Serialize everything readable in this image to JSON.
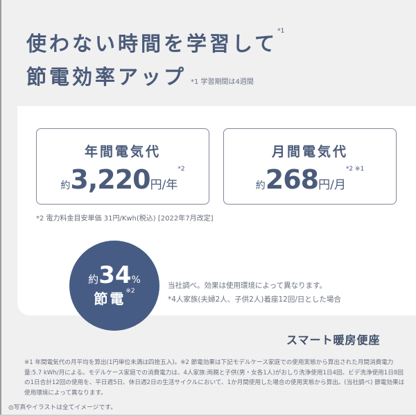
{
  "heading": {
    "line1": "使わない時間を学習して",
    "line1_mark": "*1",
    "line2": "節電効率アップ",
    "note": "*1 学習期間は4週間"
  },
  "cards": [
    {
      "title": "年間電気代",
      "prefix": "約",
      "value": "3,220",
      "unit": "円/年",
      "marks": "*2"
    },
    {
      "title": "月間電気代",
      "prefix": "約",
      "value": "268",
      "unit": "円/月",
      "marks": "*2 ※1"
    }
  ],
  "price_note": "*2 電力料金目安単価 31円/Kwh(税込) [2022年7月改定]",
  "saving": {
    "prefix": "約",
    "value": "34",
    "unit": "%",
    "label": "節電",
    "mark": "※2",
    "color": "#465c84"
  },
  "saving_notes": [
    "当社調べ。効果は使用環境によって異なります。",
    "*4人家族(夫婦2人、子供2人)着座12回/日とした場合"
  ],
  "product": "スマート暖房便座",
  "footnote": "※1 年間電気代の月平均を算出(1円単位未満は四捨五入)。※2 節電効果は下記モデルケース家庭での使用実態から算出された月間消費電力量:5.7 kWh/月による。モデルケース家庭での消費電力は、4人家族:両親と子供(男・女各1人)がおしり洗浄使用1日4回、ビデ洗浄使用1日8回の1日合計12回の使用を、平日週5日、休日週2日の生活サイクルにおいて、1か月間使用した場合の使用実態から算出。(当社調べ) 節電効果は使用環境によって異なります。",
  "image_note": "◎写真やイラストは全てイメージです。"
}
